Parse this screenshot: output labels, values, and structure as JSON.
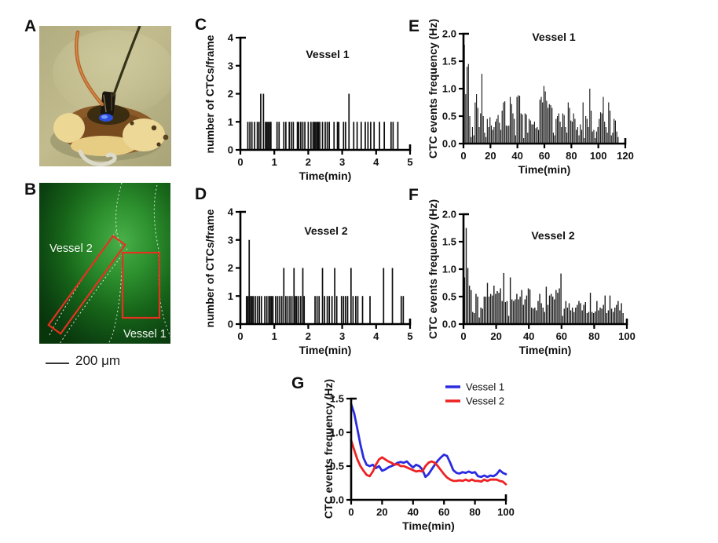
{
  "panel_letters": {
    "a": "A",
    "b": "B",
    "c": "C",
    "d": "D",
    "e": "E",
    "f": "F",
    "g": "G"
  },
  "panel_b": {
    "vessel2_label": "Vessel 2",
    "vessel1_label": "Vessel 1",
    "scale_bar_label": "200 μm"
  },
  "colors": {
    "bars": "#1c1c1c",
    "spikes": "#0d0d0d",
    "axis": "#000000",
    "roi_outline": "#e8311f",
    "vessel1_line": "#2b2be0",
    "vessel2_line": "#ee2222"
  },
  "chart_data": [
    {
      "id": "c",
      "type": "bar",
      "subtype": "event-spikes",
      "title": "Vessel 1",
      "xlabel": "Time(min)",
      "ylabel": "number of CTCs/frame",
      "xlim": [
        0,
        5
      ],
      "ylim": [
        0,
        4
      ],
      "xticks": [
        "0",
        "1",
        "2",
        "3",
        "4",
        "5"
      ],
      "yticks": [
        "0",
        "1",
        "2",
        "3",
        "4"
      ],
      "grid": false,
      "events": [
        [
          0.22,
          1
        ],
        [
          0.28,
          1
        ],
        [
          0.34,
          1
        ],
        [
          0.42,
          1
        ],
        [
          0.5,
          1
        ],
        [
          0.55,
          1
        ],
        [
          0.6,
          2
        ],
        [
          0.68,
          2
        ],
        [
          0.74,
          1
        ],
        [
          0.78,
          1
        ],
        [
          0.82,
          1
        ],
        [
          0.86,
          1
        ],
        [
          0.9,
          1
        ],
        [
          1.08,
          1
        ],
        [
          1.14,
          1
        ],
        [
          1.28,
          1
        ],
        [
          1.34,
          1
        ],
        [
          1.44,
          1
        ],
        [
          1.5,
          1
        ],
        [
          1.56,
          1
        ],
        [
          1.68,
          1
        ],
        [
          1.72,
          1
        ],
        [
          1.78,
          1
        ],
        [
          1.84,
          1
        ],
        [
          1.9,
          1
        ],
        [
          2.0,
          1
        ],
        [
          2.08,
          1
        ],
        [
          2.14,
          1
        ],
        [
          2.18,
          1
        ],
        [
          2.22,
          1
        ],
        [
          2.26,
          1
        ],
        [
          2.3,
          1
        ],
        [
          2.34,
          1
        ],
        [
          2.42,
          1
        ],
        [
          2.5,
          1
        ],
        [
          2.56,
          1
        ],
        [
          2.62,
          1
        ],
        [
          2.76,
          1
        ],
        [
          2.86,
          1
        ],
        [
          2.9,
          1
        ],
        [
          3.04,
          1
        ],
        [
          3.1,
          1
        ],
        [
          3.2,
          2
        ],
        [
          3.34,
          1
        ],
        [
          3.44,
          1
        ],
        [
          3.56,
          1
        ],
        [
          3.68,
          1
        ],
        [
          3.76,
          1
        ],
        [
          3.84,
          1
        ],
        [
          3.94,
          1
        ],
        [
          4.1,
          1
        ],
        [
          4.24,
          1
        ],
        [
          4.44,
          1
        ],
        [
          4.5,
          1
        ],
        [
          4.64,
          1
        ]
      ]
    },
    {
      "id": "d",
      "type": "bar",
      "subtype": "event-spikes",
      "title": "Vessel 2",
      "xlabel": "Time(min)",
      "ylabel": "number of CTCs/frame",
      "xlim": [
        0,
        5
      ],
      "ylim": [
        0,
        4
      ],
      "xticks": [
        "0",
        "1",
        "2",
        "3",
        "4",
        "5"
      ],
      "yticks": [
        "0",
        "1",
        "2",
        "3",
        "4"
      ],
      "grid": false,
      "events": [
        [
          0.18,
          1
        ],
        [
          0.22,
          1
        ],
        [
          0.26,
          3
        ],
        [
          0.3,
          1
        ],
        [
          0.34,
          1
        ],
        [
          0.38,
          1
        ],
        [
          0.44,
          1
        ],
        [
          0.5,
          1
        ],
        [
          0.56,
          1
        ],
        [
          0.62,
          1
        ],
        [
          0.72,
          1
        ],
        [
          0.78,
          1
        ],
        [
          0.84,
          1
        ],
        [
          0.88,
          1
        ],
        [
          0.92,
          1
        ],
        [
          0.96,
          1
        ],
        [
          1.04,
          1
        ],
        [
          1.1,
          1
        ],
        [
          1.16,
          1
        ],
        [
          1.22,
          1
        ],
        [
          1.28,
          2
        ],
        [
          1.34,
          1
        ],
        [
          1.4,
          1
        ],
        [
          1.46,
          1
        ],
        [
          1.52,
          1
        ],
        [
          1.58,
          2
        ],
        [
          1.62,
          1
        ],
        [
          1.66,
          1
        ],
        [
          1.72,
          1
        ],
        [
          1.78,
          1
        ],
        [
          1.84,
          2
        ],
        [
          1.88,
          1
        ],
        [
          2.2,
          1
        ],
        [
          2.26,
          1
        ],
        [
          2.32,
          1
        ],
        [
          2.42,
          2
        ],
        [
          2.48,
          1
        ],
        [
          2.56,
          1
        ],
        [
          2.62,
          1
        ],
        [
          2.7,
          1
        ],
        [
          2.78,
          2
        ],
        [
          2.84,
          1
        ],
        [
          2.98,
          1
        ],
        [
          3.04,
          1
        ],
        [
          3.1,
          1
        ],
        [
          3.16,
          1
        ],
        [
          3.26,
          2
        ],
        [
          3.32,
          1
        ],
        [
          3.4,
          1
        ],
        [
          3.46,
          1
        ],
        [
          3.6,
          1
        ],
        [
          3.82,
          1
        ],
        [
          4.22,
          2
        ],
        [
          4.48,
          2
        ],
        [
          4.74,
          1
        ],
        [
          4.8,
          1
        ]
      ]
    },
    {
      "id": "e",
      "type": "bar",
      "subtype": "histogram",
      "title": "Vessel 1",
      "xlabel": "Time(min)",
      "ylabel": "CTC events frequency (Hz)",
      "xlim": [
        0,
        120
      ],
      "ylim": [
        0,
        2
      ],
      "xticks": [
        "0",
        "20",
        "40",
        "60",
        "80",
        "100",
        "120"
      ],
      "yticks": [
        "0.0",
        "0.5",
        "1.0",
        "1.5",
        "2.0"
      ],
      "grid": false,
      "x_start": 1,
      "x_step": 1,
      "values": [
        1.8,
        0.9,
        1.4,
        1.45,
        0.5,
        0.12,
        0.3,
        0.15,
        0.75,
        0.9,
        0.65,
        0.3,
        0.55,
        1.27,
        0.5,
        0.2,
        0.12,
        0.45,
        0.3,
        0.48,
        0.33,
        0.25,
        0.3,
        0.4,
        0.45,
        0.52,
        0.38,
        0.25,
        0.6,
        0.75,
        0.77,
        0.33,
        0.32,
        0.33,
        0.85,
        0.72,
        0.55,
        0.45,
        0.15,
        0.85,
        0.88,
        0.87,
        0.55,
        0.53,
        0.1,
        0.55,
        0.53,
        0.2,
        0.45,
        0.42,
        0.35,
        0.35,
        0.4,
        0.28,
        0.3,
        0.25,
        0.8,
        0.85,
        0.75,
        1.05,
        0.95,
        0.78,
        0.65,
        0.72,
        0.7,
        0.65,
        0.2,
        0.15,
        0.45,
        0.5,
        0.55,
        0.4,
        0.3,
        0.55,
        0.52,
        0.3,
        0.2,
        0.75,
        0.65,
        0.42,
        0.4,
        0.55,
        0.45,
        0.25,
        0.3,
        0.15,
        0.35,
        0.25,
        0.75,
        0.1,
        0.5,
        0.45,
        0.3,
        1.0,
        0.6,
        0.22,
        0.25,
        0.1,
        0.22,
        0.3,
        0.45,
        0.57,
        0.55,
        0.85,
        0.4,
        0.3,
        0.2,
        0.75,
        0.6,
        0.15,
        0.2,
        0.45,
        0.42,
        0.22,
        0.12
      ]
    },
    {
      "id": "f",
      "type": "bar",
      "subtype": "histogram",
      "title": "Vessel 2",
      "xlabel": "Time(min)",
      "ylabel": "CTC events frequency (Hz)",
      "xlim": [
        0,
        100
      ],
      "ylim": [
        0,
        2
      ],
      "xticks": [
        "0",
        "20",
        "40",
        "60",
        "80",
        "100"
      ],
      "yticks": [
        "0.0",
        "0.5",
        "1.0",
        "1.5",
        "2.0"
      ],
      "grid": false,
      "x_start": 1,
      "x_step": 1,
      "values": [
        0.85,
        1.75,
        1.02,
        0.7,
        0.62,
        0.22,
        0.2,
        0.55,
        0.5,
        0.12,
        0.3,
        0.28,
        0.5,
        0.5,
        0.75,
        0.5,
        0.55,
        0.52,
        0.7,
        0.55,
        0.6,
        0.57,
        0.65,
        0.42,
        0.93,
        0.4,
        0.42,
        0.15,
        0.85,
        0.45,
        0.42,
        0.45,
        0.55,
        0.45,
        0.5,
        0.62,
        0.35,
        0.45,
        0.52,
        0.65,
        0.63,
        0.3,
        0.28,
        0.3,
        0.25,
        0.42,
        0.55,
        0.38,
        0.3,
        0.22,
        0.68,
        0.35,
        0.52,
        0.55,
        0.5,
        0.45,
        0.62,
        0.57,
        0.65,
        0.92,
        0.15,
        0.28,
        0.42,
        0.3,
        0.38,
        0.25,
        0.3,
        0.22,
        0.3,
        0.35,
        0.42,
        0.38,
        0.25,
        0.35,
        0.4,
        0.2,
        0.22,
        0.57,
        0.22,
        0.2,
        0.23,
        0.42,
        0.25,
        0.3,
        0.28,
        0.35,
        0.52,
        0.2,
        0.25,
        0.52,
        0.28,
        0.22,
        0.3,
        0.35,
        0.42,
        0.25,
        0.38,
        0.2
      ]
    },
    {
      "id": "g",
      "type": "line",
      "title": "",
      "xlabel": "Time(min)",
      "ylabel": "CTC events frequency (Hz)",
      "xlim": [
        0,
        100
      ],
      "ylim": [
        0,
        1.5
      ],
      "xticks": [
        "0",
        "20",
        "40",
        "60",
        "80",
        "100"
      ],
      "yticks": [
        "0.0",
        "0.5",
        "1.0",
        "1.5"
      ],
      "grid": false,
      "legend_position": "top-right",
      "x_start": 0,
      "x_step": 2,
      "series": [
        {
          "name": "Vessel 1",
          "color": "#2b2be0",
          "values": [
            1.42,
            1.28,
            1.05,
            0.82,
            0.62,
            0.52,
            0.5,
            0.52,
            0.47,
            0.5,
            0.43,
            0.45,
            0.48,
            0.5,
            0.52,
            0.55,
            0.56,
            0.55,
            0.57,
            0.52,
            0.48,
            0.52,
            0.5,
            0.45,
            0.34,
            0.38,
            0.45,
            0.52,
            0.58,
            0.63,
            0.67,
            0.65,
            0.55,
            0.44,
            0.4,
            0.39,
            0.41,
            0.4,
            0.42,
            0.4,
            0.41,
            0.35,
            0.34,
            0.36,
            0.34,
            0.36,
            0.35,
            0.38,
            0.44,
            0.4,
            0.38
          ]
        },
        {
          "name": "Vessel 2",
          "color": "#ee2222",
          "values": [
            0.88,
            0.74,
            0.6,
            0.5,
            0.43,
            0.37,
            0.35,
            0.42,
            0.52,
            0.6,
            0.63,
            0.6,
            0.57,
            0.55,
            0.52,
            0.53,
            0.5,
            0.5,
            0.48,
            0.46,
            0.44,
            0.42,
            0.43,
            0.42,
            0.5,
            0.55,
            0.57,
            0.55,
            0.5,
            0.44,
            0.38,
            0.33,
            0.3,
            0.28,
            0.28,
            0.29,
            0.28,
            0.3,
            0.28,
            0.3,
            0.28,
            0.28,
            0.27,
            0.3,
            0.28,
            0.3,
            0.3,
            0.3,
            0.28,
            0.27,
            0.23
          ]
        }
      ]
    }
  ]
}
